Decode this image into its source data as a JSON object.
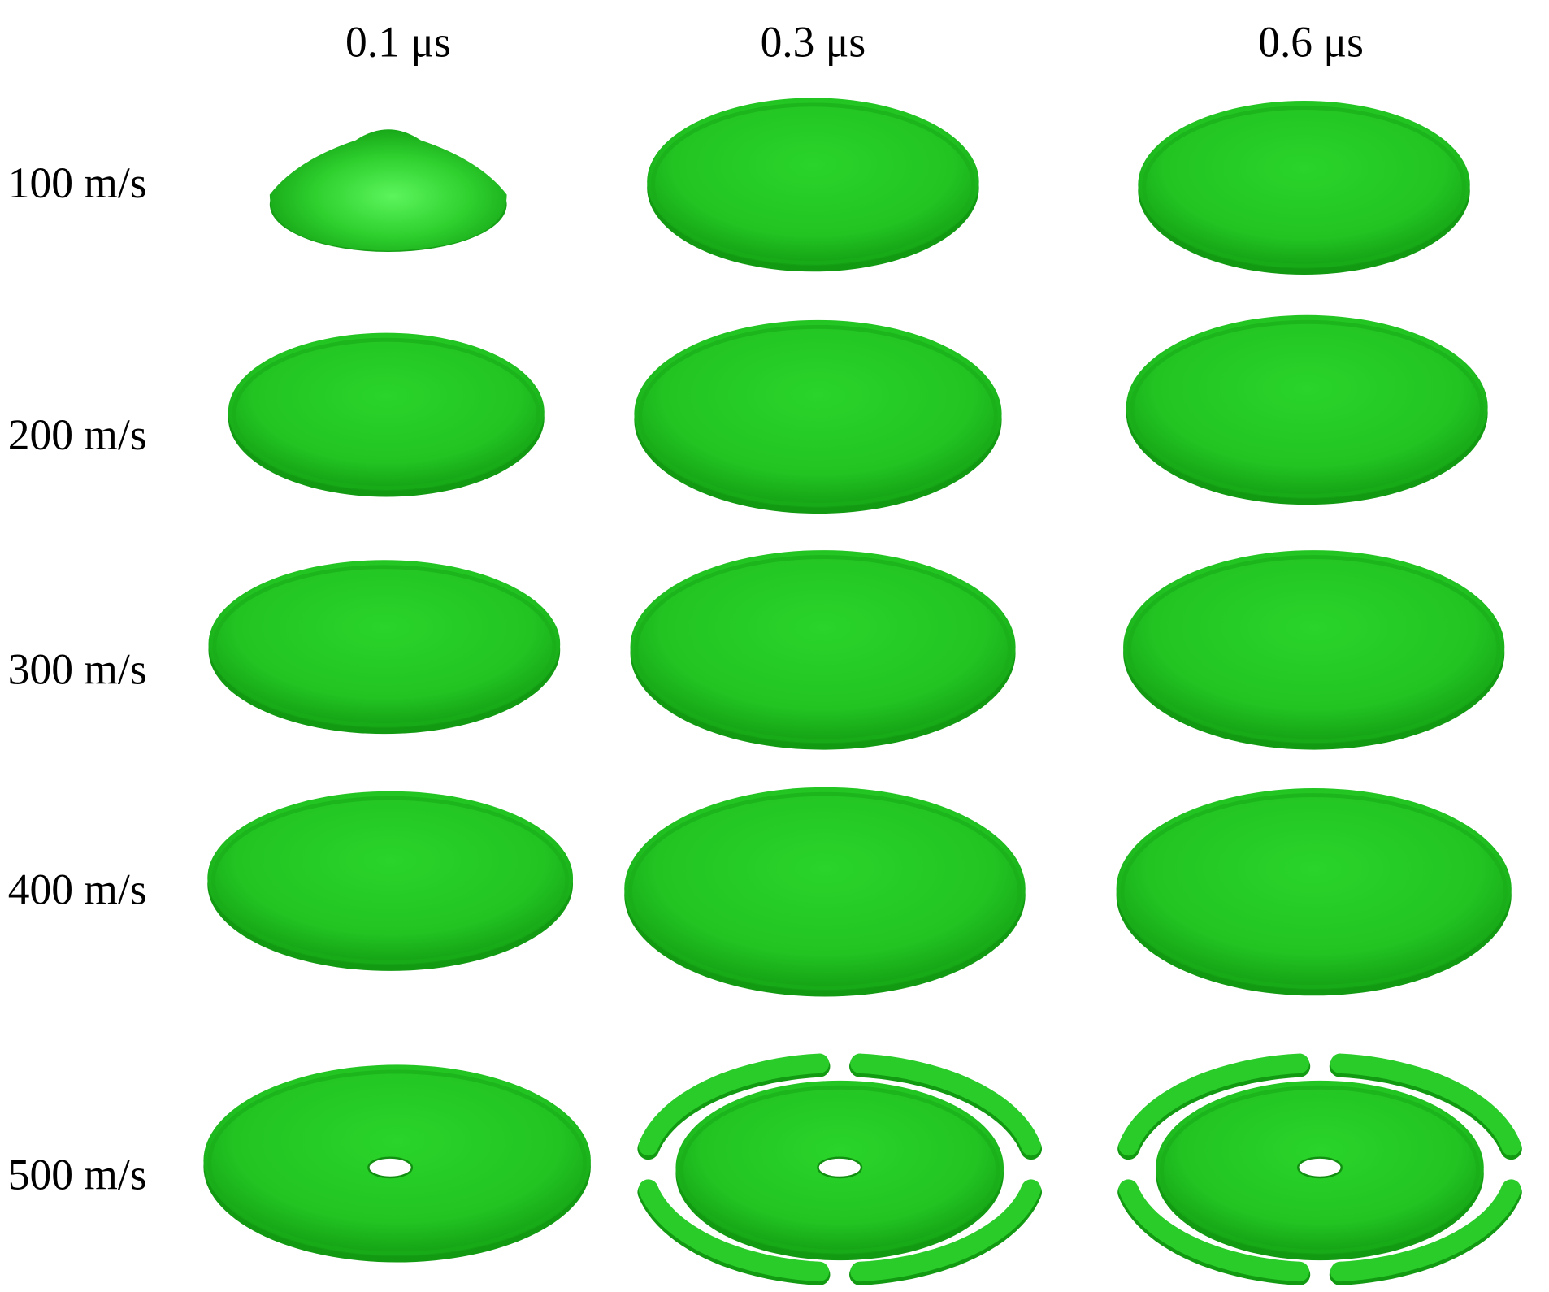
{
  "columns": [
    "0.1 μs",
    "0.3 μs",
    "0.6 μs"
  ],
  "rows": [
    "100 m/s",
    "200 m/s",
    "300 m/s",
    "400 m/s",
    "500 m/s"
  ]
}
